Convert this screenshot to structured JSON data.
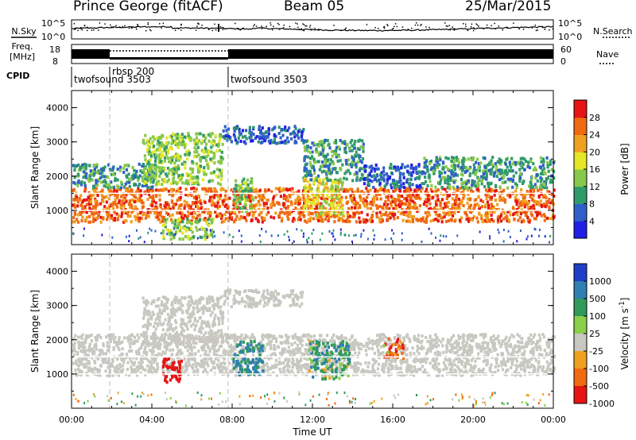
{
  "header": {
    "station": "Prince George (fitACF)",
    "beam": "Beam 05",
    "date": "25/Mar/2015"
  },
  "strip_labels": {
    "nsky_label": "N.Sky",
    "nsky_ticks": [
      "10^5",
      "10^0"
    ],
    "nsearch_label": "N.Search",
    "nsearch_ticks": [
      "10^5",
      "10^0"
    ],
    "freq_label_line1": "Freq.",
    "freq_label_line2": "[MHz]",
    "freq_ticks": [
      "18",
      "8"
    ],
    "nave_label": "Nave",
    "nave_ticks": [
      "60",
      "0"
    ],
    "cpid_label": "CPID"
  },
  "cpid_segments": [
    {
      "start_hour": 0.0,
      "end_hour": 1.9,
      "label": "twofsound 3503"
    },
    {
      "start_hour": 1.9,
      "end_hour": 7.8,
      "label": "rbsp 200"
    },
    {
      "start_hour": 7.8,
      "end_hour": 24.0,
      "label": "twofsound 3503"
    }
  ],
  "chart_data": [
    {
      "type": "heatmap",
      "quantity": "Power",
      "xlabel": "",
      "ylabel": "Slant Range [km]",
      "xlim": [
        0,
        24
      ],
      "ylim": [
        0,
        4500
      ],
      "yticks": [
        "1000",
        "2000",
        "3000",
        "4000"
      ],
      "colorbar": {
        "label": "Power [dB]",
        "ticks": [
          "4",
          "8",
          "12",
          "16",
          "20",
          "24",
          "28"
        ],
        "colors": [
          "#1f1fe6",
          "#2f5fc8",
          "#2f9a6a",
          "#88c84a",
          "#e6e628",
          "#f0a020",
          "#f06a10",
          "#e61414"
        ]
      },
      "regions": [
        {
          "t": [
            0.0,
            24.0
          ],
          "r": [
            700,
            1700
          ],
          "level": 26
        },
        {
          "t": [
            0.0,
            4.2
          ],
          "r": [
            1700,
            2400
          ],
          "level": 10
        },
        {
          "t": [
            3.5,
            7.5
          ],
          "r": [
            1800,
            3300
          ],
          "level": 14
        },
        {
          "t": [
            7.5,
            11.5
          ],
          "r": [
            3000,
            3500
          ],
          "level": 9
        },
        {
          "t": [
            11.5,
            14.5
          ],
          "r": [
            1900,
            3100
          ],
          "level": 10
        },
        {
          "t": [
            14.5,
            17.5
          ],
          "r": [
            1700,
            2400
          ],
          "level": 9
        },
        {
          "t": [
            17.5,
            24.0
          ],
          "r": [
            1700,
            2600
          ],
          "level": 12
        },
        {
          "t": [
            4.5,
            7.0
          ],
          "r": [
            200,
            800
          ],
          "level": 14
        },
        {
          "t": [
            8.0,
            9.0
          ],
          "r": [
            1000,
            2000
          ],
          "level": 15
        },
        {
          "t": [
            11.5,
            13.5
          ],
          "r": [
            900,
            2000
          ],
          "level": 18
        }
      ]
    },
    {
      "type": "heatmap",
      "quantity": "Velocity",
      "xlabel": "Time UT",
      "ylabel": "Slant Range [km]",
      "xlim": [
        0,
        24
      ],
      "ylim": [
        0,
        4500
      ],
      "yticks": [
        "1000",
        "2000",
        "3000",
        "4000"
      ],
      "xticks": [
        "00:00",
        "04:00",
        "08:00",
        "12:00",
        "16:00",
        "20:00",
        "00:00"
      ],
      "colorbar": {
        "label": "Velocity [m s^-1]",
        "ticks": [
          "1000",
          "500",
          "100",
          "25",
          "-25",
          "-100",
          "-500",
          "-1000"
        ],
        "colors": [
          "#1f3fc8",
          "#2f7fb0",
          "#2f9a5a",
          "#8ad04a",
          "#c8c8c0",
          "#f0a020",
          "#f06a10",
          "#e61414"
        ]
      },
      "regions": [
        {
          "t": [
            0.0,
            24.0
          ],
          "r": [
            1000,
            2200
          ],
          "vel": 0
        },
        {
          "t": [
            3.5,
            7.5
          ],
          "r": [
            1800,
            3300
          ],
          "vel": 0
        },
        {
          "t": [
            7.5,
            11.5
          ],
          "r": [
            3000,
            3500
          ],
          "vel": 0
        },
        {
          "t": [
            4.5,
            5.5
          ],
          "r": [
            800,
            1500
          ],
          "vel": -500
        },
        {
          "t": [
            8.0,
            9.5
          ],
          "r": [
            1000,
            2000
          ],
          "vel": 300
        },
        {
          "t": [
            11.8,
            13.8
          ],
          "r": [
            900,
            2000
          ],
          "vel": 150
        },
        {
          "t": [
            15.5,
            16.5
          ],
          "r": [
            1500,
            2100
          ],
          "vel": -150
        }
      ]
    }
  ],
  "nsky_level": 0.55,
  "freq_level": 0.5
}
